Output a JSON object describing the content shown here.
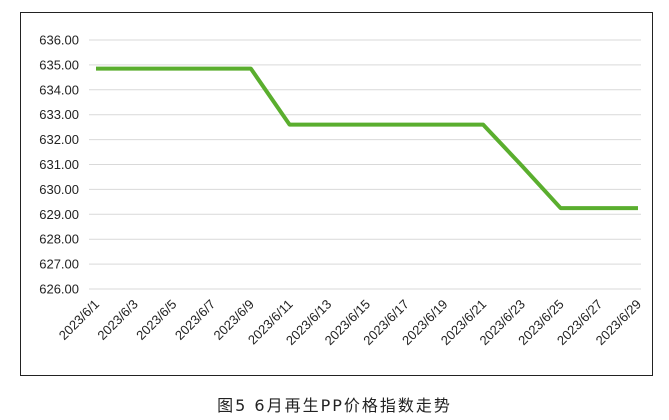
{
  "figure": {
    "caption": "图5  6月再生PP价格指数走势"
  },
  "chart_data": {
    "type": "line",
    "title": "",
    "xlabel": "",
    "ylabel": "",
    "categories": [
      "2023/6/1",
      "2023/6/3",
      "2023/6/5",
      "2023/6/7",
      "2023/6/9",
      "2023/6/11",
      "2023/6/13",
      "2023/6/15",
      "2023/6/17",
      "2023/6/19",
      "2023/6/21",
      "2023/6/23",
      "2023/6/25",
      "2023/6/27",
      "2023/6/29"
    ],
    "series": [
      {
        "color": "#5aae2e",
        "values": [
          634.85,
          634.85,
          634.85,
          634.85,
          634.85,
          632.6,
          632.6,
          632.6,
          632.6,
          632.6,
          632.6,
          630.95,
          629.25,
          629.25,
          629.25
        ]
      }
    ],
    "ylim": [
      626.0,
      636.0
    ],
    "yticks": [
      "626.00",
      "627.00",
      "628.00",
      "629.00",
      "630.00",
      "631.00",
      "632.00",
      "633.00",
      "634.00",
      "635.00",
      "636.00"
    ],
    "grid": true,
    "legend": "none"
  }
}
